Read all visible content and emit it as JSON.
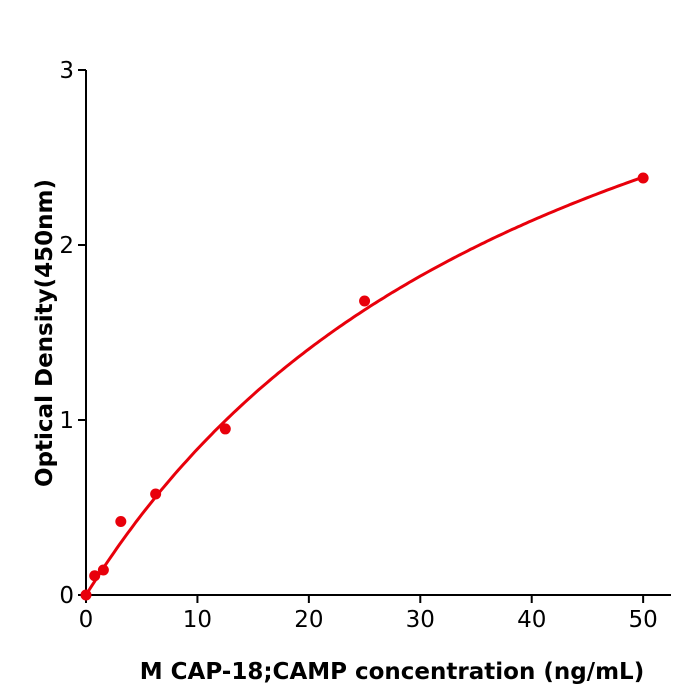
{
  "chart_data": {
    "type": "scatter",
    "title": "",
    "xlabel": "M  CAP-18;CAMP concentration (ng/mL)",
    "ylabel": "Optical Density(450nm)",
    "xlim": [
      0,
      52.5
    ],
    "ylim": [
      0,
      3
    ],
    "xticks": [
      "0",
      "10",
      "20",
      "30",
      "40",
      "50"
    ],
    "yticks": [
      "0",
      "1",
      "2",
      "3"
    ],
    "grid": false,
    "legend": "none",
    "series": [
      {
        "x": [
          0,
          0.78,
          1.56,
          3.125,
          6.25,
          12.5,
          25,
          50
        ],
        "y": [
          0.0,
          0.11,
          0.143,
          0.42,
          0.577,
          0.949,
          1.68,
          2.383
        ],
        "color": "#e8000b",
        "fit": "smooth curve"
      }
    ]
  }
}
